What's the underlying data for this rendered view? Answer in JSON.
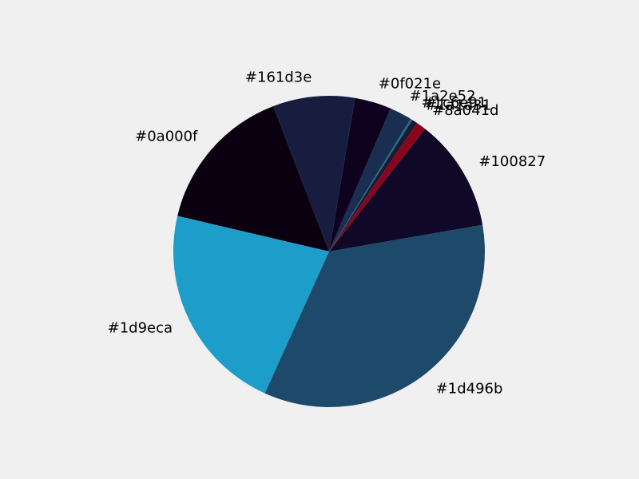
{
  "chart_data": {
    "type": "pie",
    "title": "",
    "legend": "none",
    "slices": [
      {
        "label": "#0a000f",
        "value": 15.5,
        "color": "#0a000f"
      },
      {
        "label": "#1d9eca",
        "value": 21.9,
        "color": "#1d9eca"
      },
      {
        "label": "#1d496b",
        "value": 34.5,
        "color": "#1d496b"
      },
      {
        "label": "#100827",
        "value": 11.7,
        "color": "#100827"
      },
      {
        "label": "#8a041d",
        "value": 1.0,
        "color": "#8a041d"
      },
      {
        "label": "#1a1a31",
        "value": 0.6,
        "color": "#1a1a31"
      },
      {
        "label": "#1c6e91",
        "value": 0.2,
        "color": "#1c6e91"
      },
      {
        "label": "#1a2e52",
        "value": 2.3,
        "color": "#1a2e52"
      },
      {
        "label": "#0f021e",
        "value": 3.8,
        "color": "#0f021e"
      },
      {
        "label": "#161d3e",
        "value": 8.5,
        "color": "#161d3e"
      }
    ]
  }
}
